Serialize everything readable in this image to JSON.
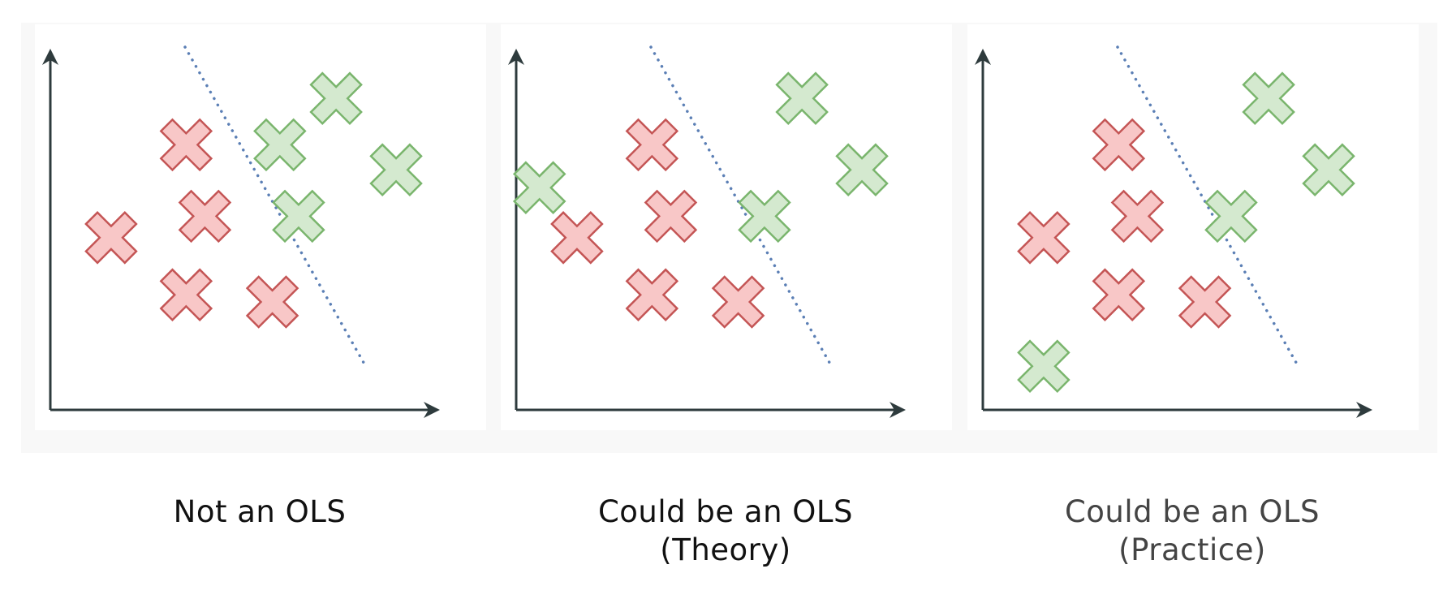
{
  "colors": {
    "background_band": "#f8f8f8",
    "panel": "#ffffff",
    "axis": "#2e3b3d",
    "boundary": "#5b7fb5",
    "red_fill": "#f8c7c7",
    "red_stroke": "#c45555",
    "green_fill": "#d4e9cf",
    "green_stroke": "#7ab56d",
    "caption_dark": "#111111",
    "caption_grey": "#444444"
  },
  "panels": [
    {
      "name": "not-an-ols",
      "caption_lines": [
        "Not an OLS"
      ],
      "caption_color": "#111111",
      "red_points": [
        [
          0.16,
          0.52
        ],
        [
          0.36,
          0.26
        ],
        [
          0.41,
          0.46
        ],
        [
          0.36,
          0.68
        ],
        [
          0.59,
          0.7
        ]
      ],
      "green_points": [
        [
          0.76,
          0.13
        ],
        [
          0.61,
          0.26
        ],
        [
          0.92,
          0.33
        ],
        [
          0.66,
          0.46
        ]
      ]
    },
    {
      "name": "could-be-an-ols-theory",
      "caption_lines": [
        "Could be an OLS",
        "(Theory)"
      ],
      "caption_color": "#111111",
      "red_points": [
        [
          0.16,
          0.52
        ],
        [
          0.36,
          0.26
        ],
        [
          0.41,
          0.46
        ],
        [
          0.36,
          0.68
        ],
        [
          0.59,
          0.7
        ]
      ],
      "green_points": [
        [
          0.76,
          0.13
        ],
        [
          0.06,
          0.38
        ],
        [
          0.92,
          0.33
        ],
        [
          0.66,
          0.46
        ]
      ]
    },
    {
      "name": "could-be-an-ols-practice",
      "caption_lines": [
        "Could be an OLS",
        "(Practice)"
      ],
      "caption_color": "#444444",
      "red_points": [
        [
          0.16,
          0.52
        ],
        [
          0.36,
          0.26
        ],
        [
          0.41,
          0.46
        ],
        [
          0.36,
          0.68
        ],
        [
          0.59,
          0.7
        ]
      ],
      "green_points": [
        [
          0.76,
          0.13
        ],
        [
          0.16,
          0.88
        ],
        [
          0.92,
          0.33
        ],
        [
          0.66,
          0.46
        ]
      ]
    }
  ]
}
